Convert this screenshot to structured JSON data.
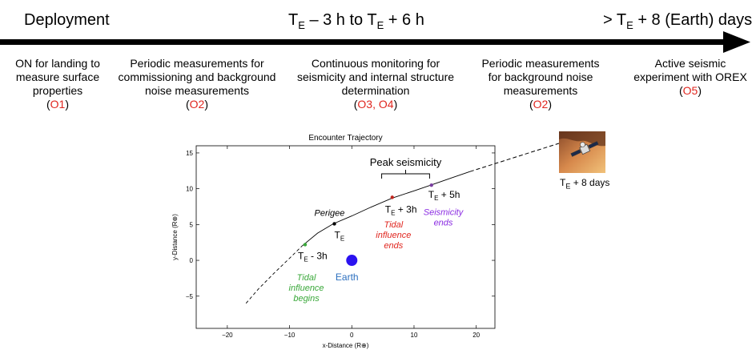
{
  "timeline": {
    "deployment": "Deployment",
    "mid": {
      "t": "T",
      "sub": "E",
      "rest": " – 3 h to T",
      "sub2": "E",
      "rest2": " + 6 h"
    },
    "end": {
      "pre": "> T",
      "sub": "E",
      "rest": " + 8 (Earth) days"
    }
  },
  "phases": [
    {
      "lines": [
        "ON for landing to",
        "measure surface",
        "properties"
      ],
      "code": "O1"
    },
    {
      "lines": [
        "Periodic measurements for",
        "commissioning and background",
        "noise measurements"
      ],
      "code": "O2"
    },
    {
      "lines": [
        "Continuous monitoring for",
        "seismicity and internal structure",
        "determination"
      ],
      "code": "O3, O4"
    },
    {
      "lines": [
        "Periodic measurements",
        "for background noise",
        "measurements"
      ],
      "code": "O2"
    },
    {
      "lines": [
        "Active seismic",
        "experiment with OREX"
      ],
      "code": "O5"
    }
  ],
  "chart_data": {
    "type": "line",
    "title": "Encounter Trajectory",
    "xlabel": "x-Distance (R⊕)",
    "ylabel": "y-Distance (R⊕)",
    "xlim": [
      -25,
      23
    ],
    "ylim": [
      -9.5,
      16
    ],
    "xticks": [
      -20,
      -10,
      0,
      10,
      20
    ],
    "yticks": [
      -5,
      0,
      5,
      10,
      15
    ],
    "trajectory": {
      "dashed_before": [
        [
          -17,
          -6
        ],
        [
          -15,
          -4
        ],
        [
          -12.5,
          -1.8
        ],
        [
          -10,
          0.3
        ],
        [
          -8,
          2
        ]
      ],
      "solid": [
        [
          -8,
          2
        ],
        [
          -5.5,
          3.8
        ],
        [
          -3,
          5.1
        ],
        [
          0,
          6.2
        ],
        [
          3,
          7.4
        ],
        [
          6.5,
          8.7
        ],
        [
          10,
          9.7
        ],
        [
          13,
          10.6
        ],
        [
          16,
          11.5
        ],
        [
          19,
          12.4
        ]
      ],
      "dashed_after": [
        [
          19,
          12.4
        ],
        [
          22.5,
          13.5
        ]
      ]
    },
    "markers": [
      {
        "name": "te-minus-3h",
        "x": -7.5,
        "y": 2.2,
        "color": "#3aa83a",
        "label": "T",
        "sub": "E",
        "suffix": " - 3h"
      },
      {
        "name": "perigee",
        "x": -2.8,
        "y": 5.1,
        "color": "#000000",
        "label": "T",
        "sub": "E",
        "suffix": ""
      },
      {
        "name": "te-plus-3h",
        "x": 6.5,
        "y": 8.8,
        "color": "#c0261f",
        "label": "T",
        "sub": "E",
        "suffix": " + 3h"
      },
      {
        "name": "te-plus-5h",
        "x": 12.8,
        "y": 10.5,
        "color": "#7b3fa0",
        "label": "T",
        "sub": "E",
        "suffix": " + 5h"
      }
    ],
    "earth": {
      "x": 0,
      "y": 0,
      "label": "Earth",
      "color": "#2b12f0",
      "label_color": "#2c6fbf"
    },
    "annotations": {
      "perigee": "Perigee",
      "peak": "Peak seismicity",
      "tidal_begins": [
        "Tidal",
        "influence",
        "begins"
      ],
      "tidal_ends": [
        "Tidal",
        "influence",
        "ends"
      ],
      "seismicity_ends": [
        "Seismicity",
        "ends"
      ]
    },
    "annotation_colors": {
      "tidal_begins": "#3aa83a",
      "tidal_ends": "#e0261f",
      "seismicity_ends": "#8a2be2"
    }
  },
  "orex_caption": {
    "pre": "T",
    "sub": "E",
    "rest": " + 8 days"
  },
  "orex_image_icon": "spacecraft-icon"
}
